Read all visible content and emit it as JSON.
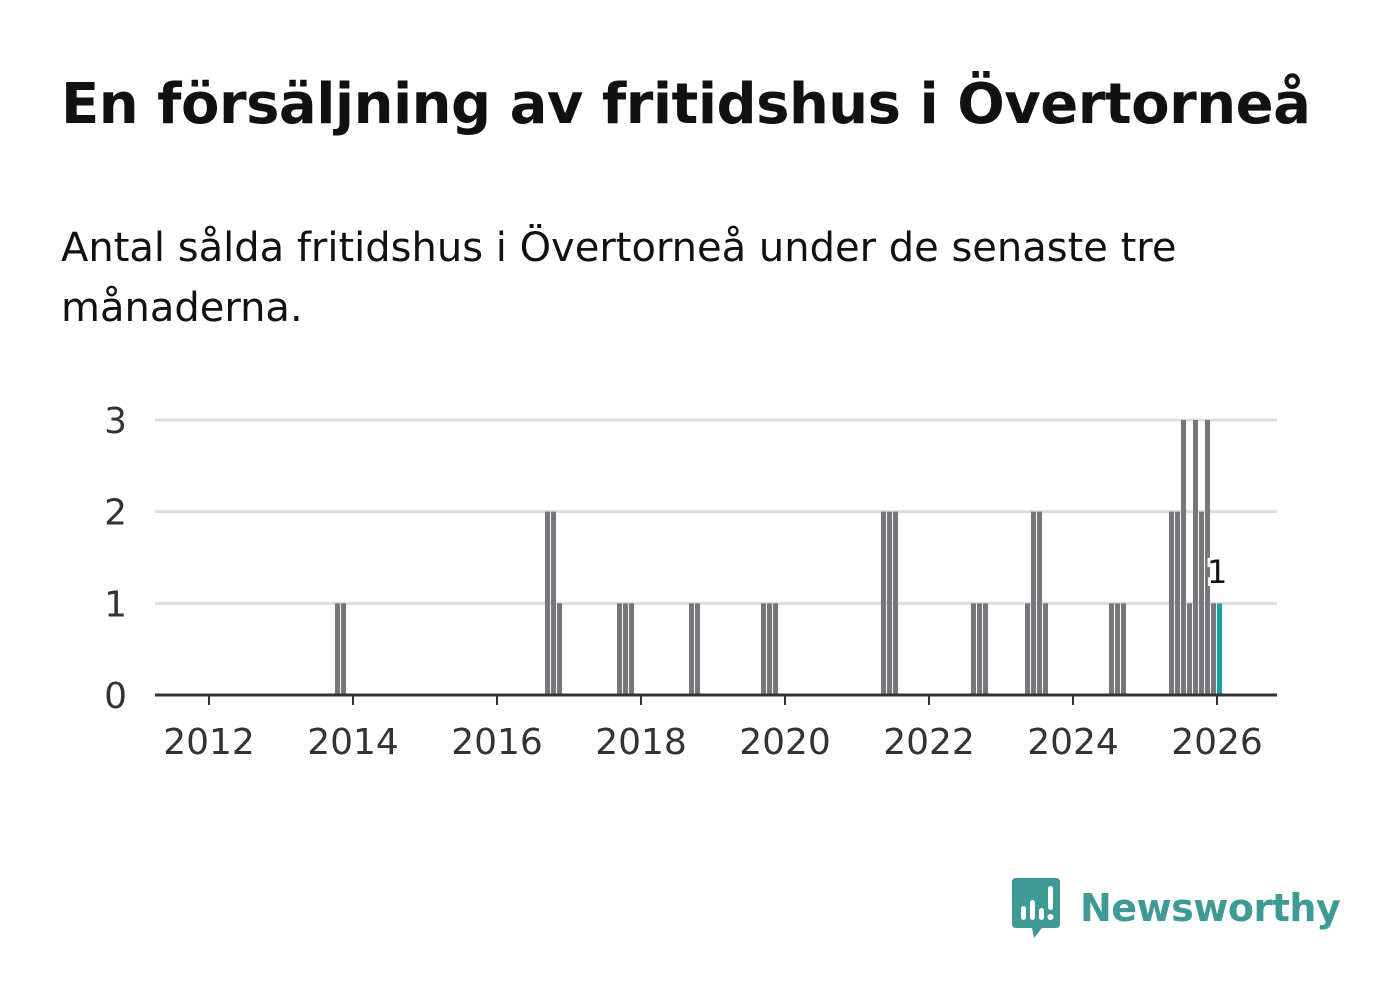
{
  "title": "En försäljning av fritidshus i Övertorneå",
  "subtitle": "Antal sålda fritidshus i Övertorneå under de senaste tre månaderna.",
  "brand": {
    "name": "Newsworthy",
    "color": "#3f9a96",
    "icon": "bar-chart-speech-bubble-icon"
  },
  "chart_data": {
    "type": "bar",
    "xlabel": "",
    "ylabel": "",
    "ylim": [
      0,
      3
    ],
    "y_ticks": [
      0,
      1,
      2,
      3
    ],
    "x_ticks": [
      "2012",
      "2014",
      "2016",
      "2018",
      "2020",
      "2022",
      "2024",
      "2026"
    ],
    "grid": true,
    "bar_color": "#77767b",
    "highlight_color": "#13a3a0",
    "annotation": {
      "text": "1",
      "date": "2026-01"
    },
    "points": [
      {
        "date": "2013-10",
        "value": 1
      },
      {
        "date": "2013-11",
        "value": 1
      },
      {
        "date": "2016-09",
        "value": 2
      },
      {
        "date": "2016-10",
        "value": 2
      },
      {
        "date": "2016-11",
        "value": 1
      },
      {
        "date": "2017-09",
        "value": 1
      },
      {
        "date": "2017-10",
        "value": 1
      },
      {
        "date": "2017-11",
        "value": 1
      },
      {
        "date": "2018-09",
        "value": 1
      },
      {
        "date": "2018-10",
        "value": 1
      },
      {
        "date": "2019-09",
        "value": 1
      },
      {
        "date": "2019-10",
        "value": 1
      },
      {
        "date": "2019-11",
        "value": 1
      },
      {
        "date": "2021-05",
        "value": 2
      },
      {
        "date": "2021-06",
        "value": 2
      },
      {
        "date": "2021-07",
        "value": 2
      },
      {
        "date": "2022-08",
        "value": 1
      },
      {
        "date": "2022-09",
        "value": 1
      },
      {
        "date": "2022-10",
        "value": 1
      },
      {
        "date": "2023-05",
        "value": 1
      },
      {
        "date": "2023-06",
        "value": 2
      },
      {
        "date": "2023-07",
        "value": 2
      },
      {
        "date": "2023-08",
        "value": 1
      },
      {
        "date": "2024-07",
        "value": 1
      },
      {
        "date": "2024-08",
        "value": 1
      },
      {
        "date": "2024-09",
        "value": 1
      },
      {
        "date": "2025-05",
        "value": 2
      },
      {
        "date": "2025-06",
        "value": 2
      },
      {
        "date": "2025-07",
        "value": 3
      },
      {
        "date": "2025-08",
        "value": 1
      },
      {
        "date": "2025-09",
        "value": 3
      },
      {
        "date": "2025-10",
        "value": 2
      },
      {
        "date": "2025-11",
        "value": 3
      },
      {
        "date": "2025-12",
        "value": 1
      },
      {
        "date": "2026-01",
        "value": 1
      }
    ]
  }
}
